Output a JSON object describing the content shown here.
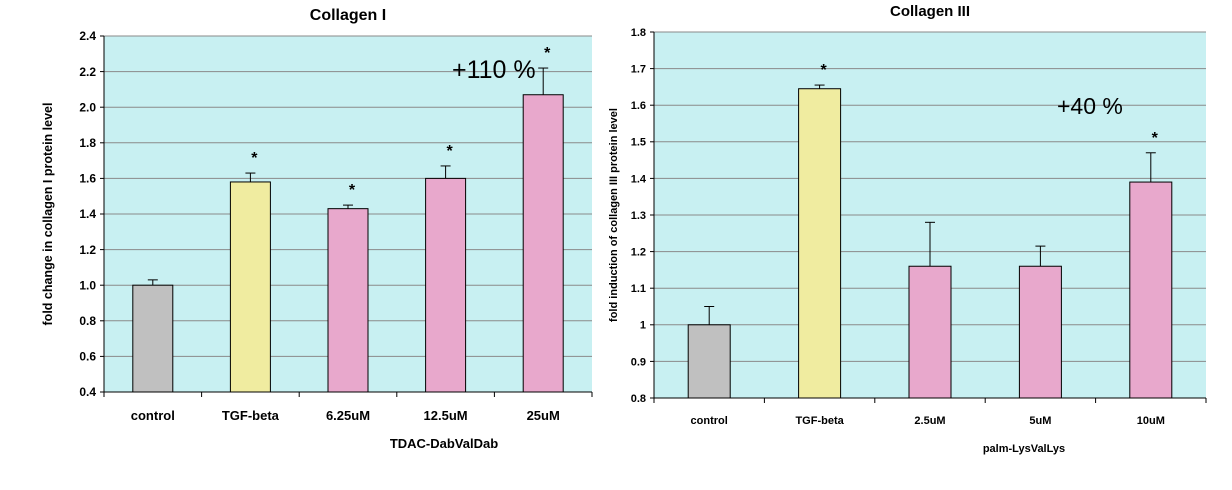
{
  "colors": {
    "plot_bg": "#c8f0f2",
    "control": "#c0c0c0",
    "tgf": "#f0eca0",
    "treatment": "#e8a8cc",
    "grid": "#8a8a8a"
  },
  "chart_data": [
    {
      "type": "bar",
      "title": "Collagen I",
      "ylabel": "fold change in collagen I protein level",
      "xlabel": "TDAC-DabValDab",
      "ylim": [
        0.4,
        2.4
      ],
      "yticks": [
        "0.4",
        "0.6",
        "0.8",
        "1.0",
        "1.2",
        "1.4",
        "1.6",
        "1.8",
        "2.0",
        "2.2",
        "2.4"
      ],
      "grid": true,
      "categories": [
        "control",
        "TGF-beta",
        "6.25uM",
        "12.5uM",
        "25uM"
      ],
      "values": [
        1.0,
        1.58,
        1.43,
        1.6,
        2.07
      ],
      "errors": [
        0.03,
        0.05,
        0.02,
        0.07,
        0.15
      ],
      "significant": [
        false,
        true,
        true,
        true,
        true
      ],
      "star": "*",
      "annotation": "+110 %"
    },
    {
      "type": "bar",
      "title": "Collagen III",
      "ylabel": "fold induction of collagen III protein level",
      "xlabel": "palm-LysValLys",
      "ylim": [
        0.8,
        1.8
      ],
      "yticks": [
        "0.8",
        "0.9",
        "1",
        "1.1",
        "1.2",
        "1.3",
        "1.4",
        "1.5",
        "1.6",
        "1.7",
        "1.8"
      ],
      "grid": true,
      "categories": [
        "control",
        "TGF-beta",
        "2.5uM",
        "5uM",
        "10uM"
      ],
      "values": [
        1.0,
        1.645,
        1.16,
        1.16,
        1.39
      ],
      "errors": [
        0.05,
        0.01,
        0.12,
        0.055,
        0.08
      ],
      "significant": [
        false,
        true,
        false,
        false,
        true
      ],
      "star": "*",
      "annotation": "+40 %"
    }
  ]
}
